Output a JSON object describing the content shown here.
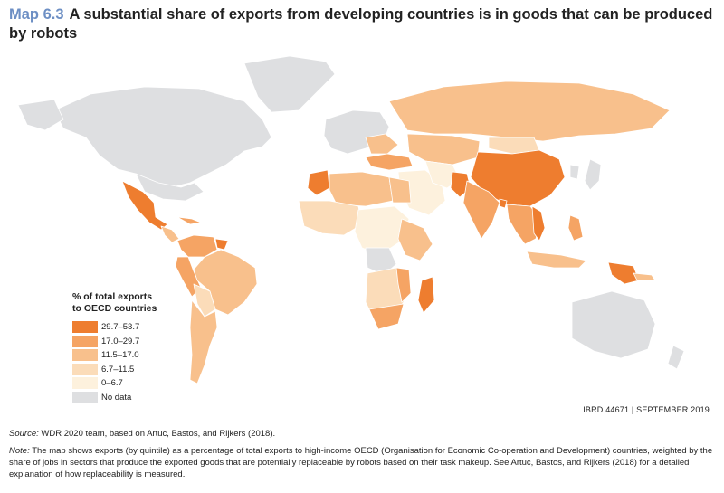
{
  "header": {
    "map_number": "Map 6.3",
    "title": "A substantial share of exports from developing countries is in goods that can be produced by robots"
  },
  "legend": {
    "title_line1": "% of total exports",
    "title_line2": "to OECD countries",
    "items": [
      {
        "label": "29.7–53.7",
        "color": "#ee7d2f"
      },
      {
        "label": "17.0–29.7",
        "color": "#f5a464"
      },
      {
        "label": "11.5–17.0",
        "color": "#f8c08c"
      },
      {
        "label": "6.7–11.5",
        "color": "#fbdcb9"
      },
      {
        "label": "0–6.7",
        "color": "#fdf1dd"
      },
      {
        "label": "No data",
        "color": "#dedfe1"
      }
    ]
  },
  "map_id": "IBRD 44671 | SEPTEMBER 2019",
  "source": {
    "label": "Source:",
    "text": "WDR 2020 team, based on Artuc, Bastos, and Rijkers (2018)."
  },
  "note": {
    "label": "Note:",
    "text": "The map shows exports (by quintile) as a percentage of total exports to high-income OECD (Organisation for Economic Co-operation and Development) countries, weighted by the share of jobs in sectors that produce the exported goods that are potentially replaceable by robots based on their task makeup. See Artuc, Bastos, and Rijkers (2018) for a detailed explanation of how replaceability is measured."
  },
  "colors": {
    "ocean": "#ffffff",
    "border": "#ffffff",
    "coast": "#8fb6dc"
  }
}
